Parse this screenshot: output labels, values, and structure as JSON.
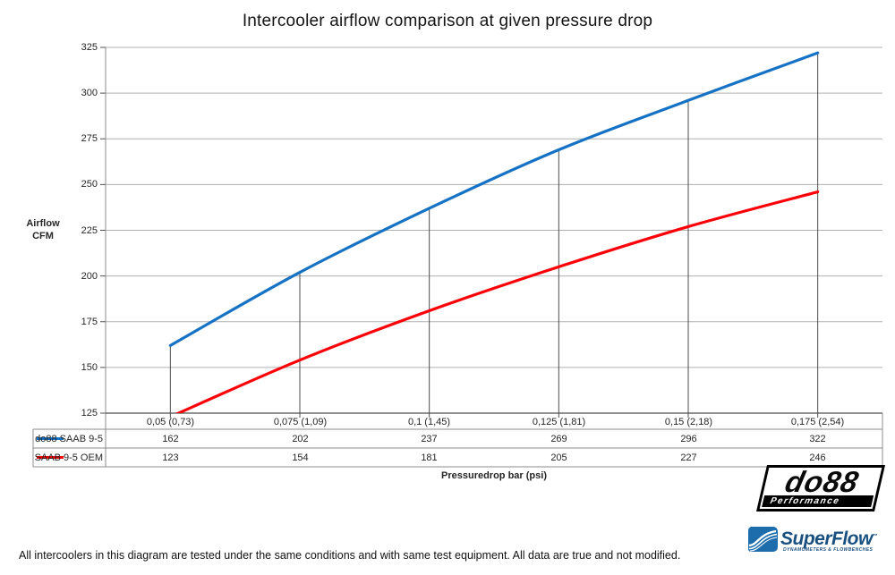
{
  "chart_data": {
    "type": "line",
    "title": "Intercooler airflow comparison at given pressure drop",
    "xlabel": "Pressuredrop bar (psi)",
    "ylabel_lines": [
      "Airflow",
      "CFM"
    ],
    "ylim": [
      125,
      325
    ],
    "ytick_step": 25,
    "yticks": [
      125,
      150,
      175,
      200,
      225,
      250,
      275,
      300,
      325
    ],
    "grid": true,
    "smooth_lines": true,
    "drop_lines": true,
    "legend_position": "table-left",
    "categories": [
      "0,05 (0,73)",
      "0,075 (1,09)",
      "0,1 (1,45)",
      "0,125 (1,81)",
      "0,15 (2,18)",
      "0,175 (2,54)"
    ],
    "series": [
      {
        "name": "do88 SAAB 9-5",
        "color": "#1572c4",
        "values": [
          162,
          202,
          237,
          269,
          296,
          322
        ]
      },
      {
        "name": "SAAB 9-5 OEM",
        "color": "#fb0007",
        "values": [
          123,
          154,
          181,
          205,
          227,
          246
        ]
      }
    ]
  },
  "colors": {
    "grid": "#b0b0b0",
    "axis": "#4d4d4d",
    "table_border": "#8c8c8c",
    "drop_line": "#4d4d4d",
    "text": "#262626"
  },
  "footnote": "All intercoolers in this diagram are tested under the same conditions and with same test equipment. All data are true and not modified.",
  "logos": {
    "do88": {
      "name": "do88",
      "tagline": "Performance"
    },
    "superflow": {
      "name": "SuperFlow",
      "trademark": "™",
      "tagline": "DYNAMOMETERS & FLOWBENCHES"
    }
  }
}
